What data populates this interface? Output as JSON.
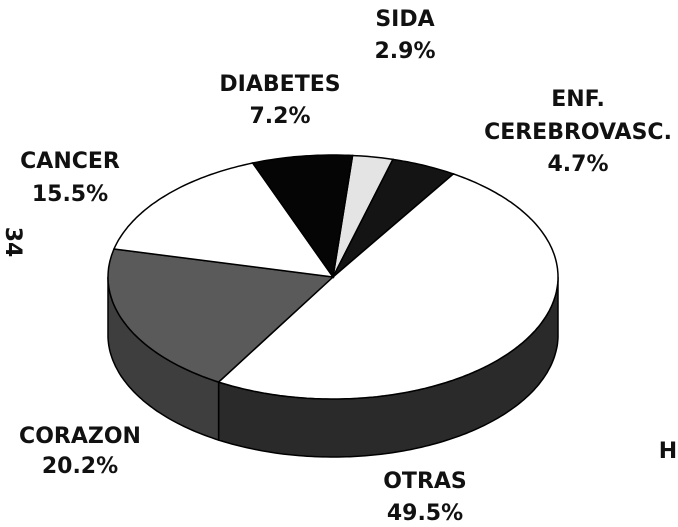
{
  "chart_data": {
    "type": "pie3d",
    "categories": [
      "SIDA",
      "ENF. CEREBROVASC.",
      "OTRAS",
      "CORAZON",
      "CANCER",
      "DIABETES"
    ],
    "values": [
      2.9,
      4.7,
      49.5,
      20.2,
      15.5,
      7.2
    ],
    "value_labels": [
      "2.9%",
      "4.7%",
      "49.5%",
      "20.2%",
      "15.5%",
      "7.2%"
    ],
    "colors": [
      "#e4e4e4",
      "#141414",
      "#ffffff",
      "#5a5a5a",
      "#ffffff",
      "#050505"
    ],
    "side_colors": [
      "#bbbbbb",
      "#0a0a0a",
      "#2a2a2a",
      "#3e3e3e",
      "#cccccc",
      "#000000"
    ],
    "annotations": [
      "34",
      "H"
    ]
  }
}
